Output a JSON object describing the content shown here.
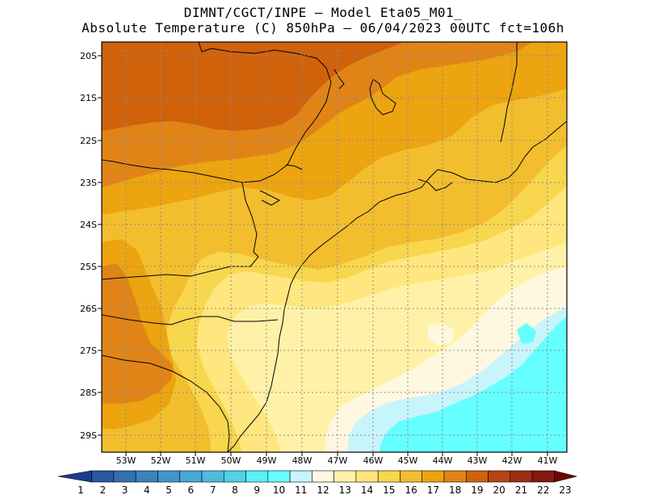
{
  "header": {
    "line1": "DIMNT/CGCT/INPE –  Model Eta05_M01_",
    "line2": "Absolute Temperature (C) 850hPa –  06/04/2023 00UTC fct=106h"
  },
  "map": {
    "lat_labels": [
      "20S",
      "21S",
      "22S",
      "23S",
      "24S",
      "25S",
      "26S",
      "27S",
      "28S",
      "29S"
    ],
    "lon_labels": [
      "53W",
      "52W",
      "51W",
      "50W",
      "49W",
      "48W",
      "47W",
      "46W",
      "45W",
      "44W",
      "43W",
      "42W",
      "41W"
    ]
  },
  "colorbar": {
    "labels": [
      "1",
      "2",
      "3",
      "4",
      "5",
      "6",
      "7",
      "8",
      "9",
      "10",
      "11",
      "12",
      "13",
      "14",
      "15",
      "16",
      "17",
      "18",
      "19",
      "20",
      "21",
      "22",
      "23"
    ],
    "colors": [
      "#1c3c8c",
      "#2a58a0",
      "#3270b0",
      "#3a82bc",
      "#4294c8",
      "#48a8d4",
      "#4cbcdc",
      "#52d2e6",
      "#5cf0f8",
      "#66ffff",
      "#c8f4fc",
      "#fff8e0",
      "#fff2a8",
      "#ffe67e",
      "#f8d64e",
      "#f2be2e",
      "#eca410",
      "#e08418",
      "#d0620c",
      "#b64414",
      "#9e2e12",
      "#861a0e",
      "#6a0808"
    ]
  },
  "field": {
    "levels": [
      "13",
      "14",
      "15",
      "16",
      "17",
      "18",
      "19",
      "11",
      "10"
    ],
    "colors": {
      "t13": "#fff2a8",
      "t14": "#ffe67e",
      "t15": "#f8d64e",
      "t16": "#f2be2e",
      "t17": "#eca410",
      "t18": "#e08418",
      "t19": "#d0620c",
      "t11": "#c8f4fc",
      "t10": "#66ffff",
      "t12": "#fff8e0"
    }
  }
}
